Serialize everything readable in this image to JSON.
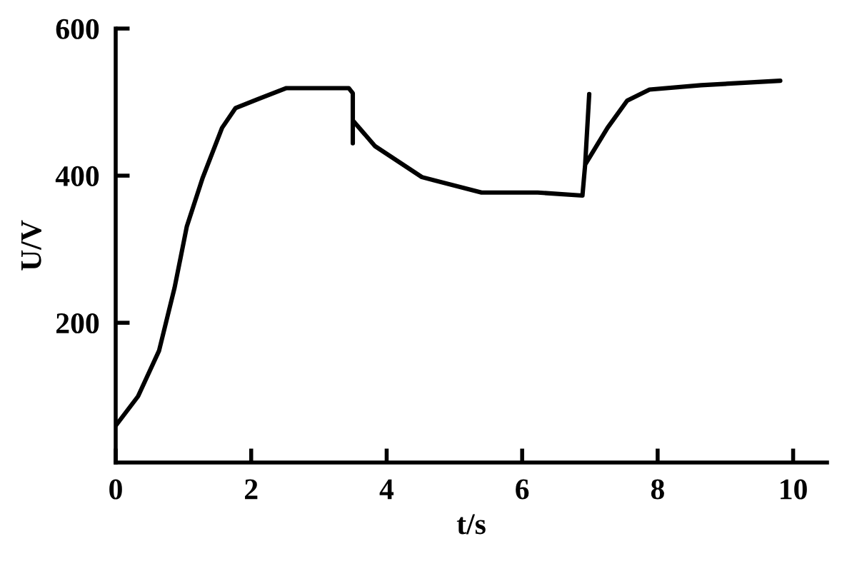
{
  "chart_data": {
    "type": "line",
    "xlabel": "t/s",
    "ylabel": "U/V",
    "xlim": [
      0,
      10.5
    ],
    "ylim": [
      10,
      600
    ],
    "xticks": [
      0,
      2,
      4,
      6,
      8,
      10
    ],
    "yticks": [
      200,
      400,
      600
    ],
    "grid": false,
    "legend": false,
    "marker": "none",
    "line_style": "solid",
    "series": [
      {
        "color": "#000000",
        "x": [
          0,
          0.33,
          0.64,
          0.87,
          1.05,
          1.28,
          1.57,
          1.77,
          2.1,
          2.52,
          3.44,
          3.5,
          3.5,
          3.5,
          3.83,
          4.52,
          5.4,
          6.23,
          6.89,
          6.93,
          6.99,
          6.93,
          7.26,
          7.55,
          7.88,
          8.64,
          9.81
        ],
        "values": [
          60,
          100,
          162,
          248,
          331,
          396,
          465,
          492,
          504,
          519,
          519,
          512,
          444,
          475,
          440,
          398,
          377,
          377,
          373,
          415,
          511,
          415,
          465,
          502,
          517,
          523,
          529
        ]
      }
    ]
  }
}
